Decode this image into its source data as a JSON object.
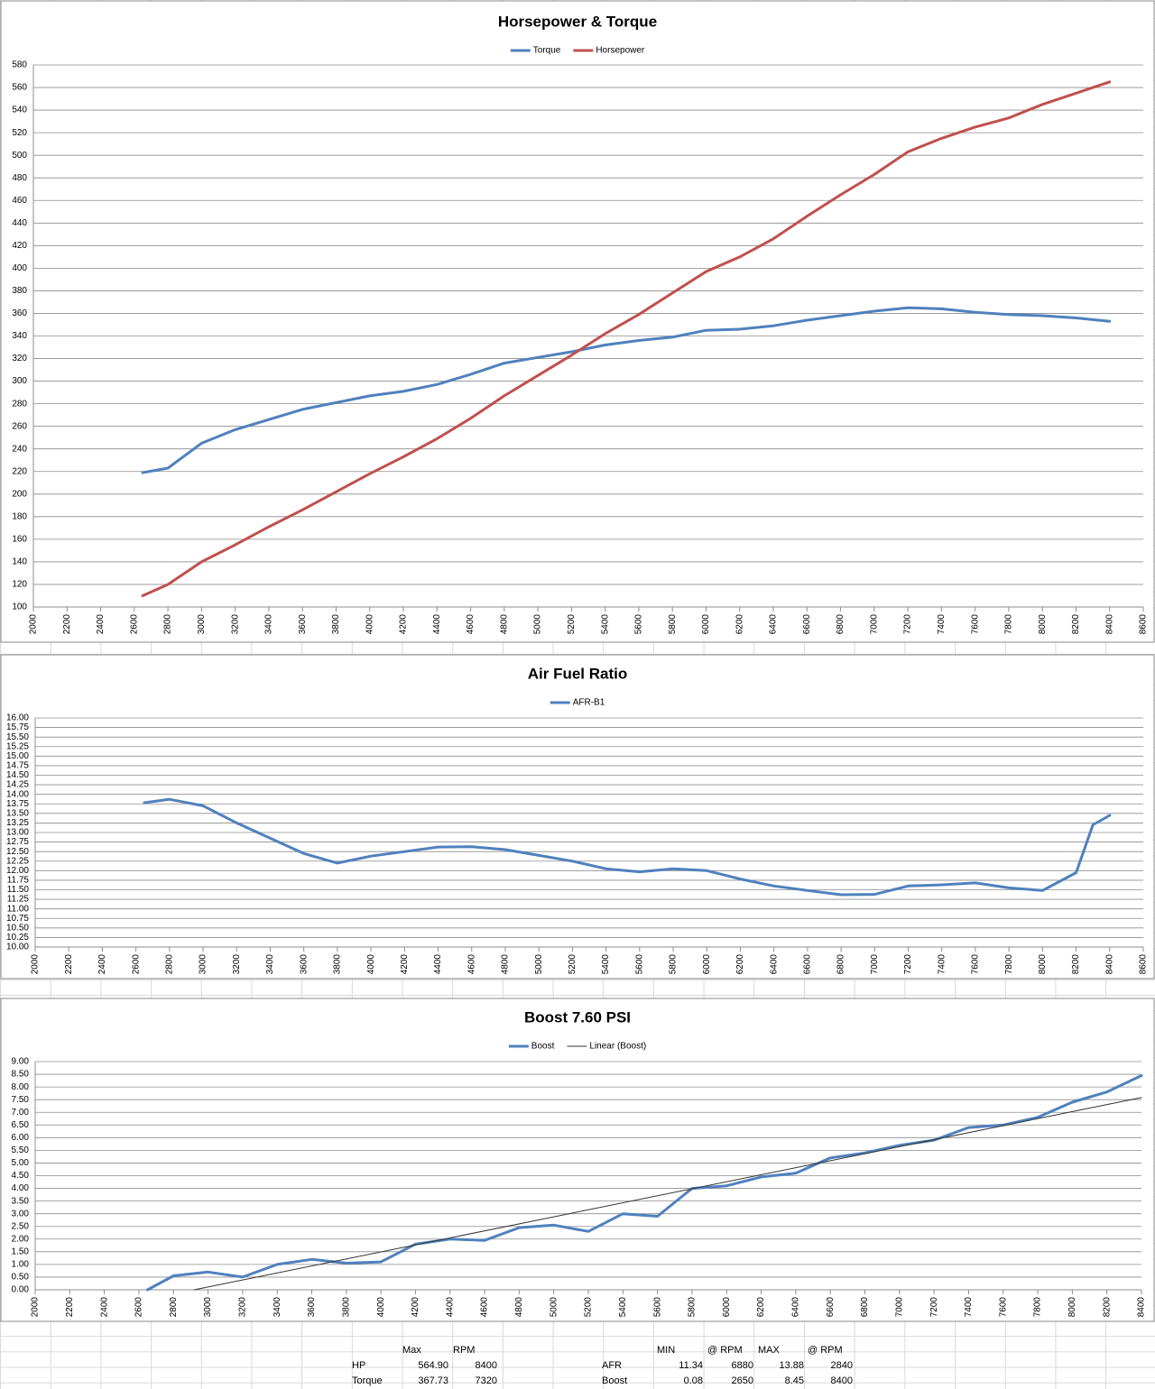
{
  "chart_data": [
    {
      "type": "line",
      "title": "Horsepower & Torque",
      "x": [
        2650,
        2800,
        3000,
        3200,
        3400,
        3600,
        3800,
        4000,
        4200,
        4400,
        4600,
        4800,
        5000,
        5200,
        5400,
        5600,
        5800,
        6000,
        6200,
        6400,
        6600,
        6800,
        7000,
        7200,
        7400,
        7600,
        7800,
        8000,
        8200,
        8400
      ],
      "series": [
        {
          "name": "Torque",
          "color": "#4f81bd",
          "values": [
            219,
            223,
            245,
            257,
            266,
            275,
            281,
            287,
            291,
            297,
            306,
            316,
            321,
            326,
            332,
            336,
            339,
            345,
            346,
            349,
            354,
            358,
            362,
            365,
            364,
            361,
            359,
            358,
            356,
            353
          ]
        },
        {
          "name": "Horsepower",
          "color": "#c0504d",
          "values": [
            110,
            120,
            140,
            155,
            171,
            186,
            202,
            218,
            233,
            249,
            267,
            287,
            305,
            323,
            342,
            359,
            378,
            397,
            410,
            426,
            446,
            465,
            483,
            503,
            515,
            525,
            533,
            545,
            555,
            565
          ]
        }
      ],
      "xlim": [
        2000,
        8600
      ],
      "xticks": [
        2000,
        2200,
        2400,
        2600,
        2800,
        3000,
        3200,
        3400,
        3600,
        3800,
        4000,
        4200,
        4400,
        4600,
        4800,
        5000,
        5200,
        5400,
        5600,
        5800,
        6000,
        6200,
        6400,
        6600,
        6800,
        7000,
        7200,
        7400,
        7600,
        7800,
        8000,
        8200,
        8400,
        8600
      ],
      "ylim": [
        100,
        580
      ],
      "yticks": [
        100,
        120,
        140,
        160,
        180,
        200,
        220,
        240,
        260,
        280,
        300,
        320,
        340,
        360,
        380,
        400,
        420,
        440,
        460,
        480,
        500,
        520,
        540,
        560,
        580
      ],
      "grid": true
    },
    {
      "type": "line",
      "title": "Air Fuel Ratio",
      "x": [
        2650,
        2800,
        3000,
        3200,
        3400,
        3600,
        3800,
        4000,
        4200,
        4400,
        4600,
        4800,
        5000,
        5200,
        5400,
        5600,
        5800,
        6000,
        6200,
        6400,
        6600,
        6800,
        7000,
        7200,
        7400,
        7600,
        7800,
        8000,
        8200,
        8300,
        8400
      ],
      "series": [
        {
          "name": "AFR-B1",
          "color": "#4f81bd",
          "values": [
            13.78,
            13.87,
            13.7,
            13.25,
            12.85,
            12.45,
            12.2,
            12.38,
            12.5,
            12.62,
            12.63,
            12.55,
            12.4,
            12.25,
            12.05,
            11.97,
            12.05,
            12.0,
            11.78,
            11.6,
            11.48,
            11.37,
            11.38,
            11.6,
            11.63,
            11.68,
            11.55,
            11.48,
            11.95,
            13.2,
            13.45
          ]
        }
      ],
      "xlim": [
        2000,
        8600
      ],
      "xticks": [
        2000,
        2200,
        2400,
        2600,
        2800,
        3000,
        3200,
        3400,
        3600,
        3800,
        4000,
        4200,
        4400,
        4600,
        4800,
        5000,
        5200,
        5400,
        5600,
        5800,
        6000,
        6200,
        6400,
        6600,
        6800,
        7000,
        7200,
        7400,
        7600,
        7800,
        8000,
        8200,
        8400,
        8600
      ],
      "ylim": [
        10,
        16
      ],
      "yticks": [
        {
          "value": 10,
          "label": "10.00"
        },
        {
          "value": 10.25,
          "label": "10.25"
        },
        {
          "value": 10.5,
          "label": "10.50"
        },
        {
          "value": 10.75,
          "label": "10.75"
        },
        {
          "value": 11,
          "label": "11.00"
        },
        {
          "value": 11.25,
          "label": "11.25"
        },
        {
          "value": 11.5,
          "label": "11.50"
        },
        {
          "value": 11.75,
          "label": "11.75"
        },
        {
          "value": 12,
          "label": "12.00"
        },
        {
          "value": 12.25,
          "label": "12.25"
        },
        {
          "value": 12.5,
          "label": "12.50"
        },
        {
          "value": 12.75,
          "label": "12.75"
        },
        {
          "value": 13,
          "label": "13.00"
        },
        {
          "value": 13.25,
          "label": "13.25"
        },
        {
          "value": 13.5,
          "label": "13.50"
        },
        {
          "value": 13.75,
          "label": "13.75"
        },
        {
          "value": 14,
          "label": "14.00"
        },
        {
          "value": 14.25,
          "label": "14.25"
        },
        {
          "value": 14.5,
          "label": "14.50"
        },
        {
          "value": 14.75,
          "label": "14.75"
        },
        {
          "value": 15,
          "label": "15.00"
        },
        {
          "value": 15.25,
          "label": "15.25"
        },
        {
          "value": 15.5,
          "label": "15.50"
        },
        {
          "value": 15.75,
          "label": "15.75"
        },
        {
          "value": 16,
          "label": "16.00"
        }
      ],
      "grid": true
    },
    {
      "type": "line",
      "title": "Boost 7.60 PSI",
      "x": [
        2650,
        2800,
        3000,
        3200,
        3400,
        3600,
        3800,
        4000,
        4200,
        4400,
        4600,
        4800,
        5000,
        5200,
        5400,
        5600,
        5800,
        6000,
        6200,
        6400,
        6600,
        6800,
        7000,
        7200,
        7400,
        7600,
        7800,
        8000,
        8200,
        8400
      ],
      "series": [
        {
          "name": "Boost",
          "color": "#4f81bd",
          "values": [
            0.0,
            0.55,
            0.7,
            0.5,
            1.0,
            1.2,
            1.05,
            1.1,
            1.8,
            2.0,
            1.95,
            2.45,
            2.55,
            2.3,
            3.0,
            2.9,
            4.0,
            4.1,
            4.45,
            4.6,
            5.2,
            5.4,
            5.7,
            5.9,
            6.4,
            6.5,
            6.8,
            7.4,
            7.8,
            8.45
          ]
        },
        {
          "name": "Linear (Boost)",
          "color": "#333333",
          "x": [
            2920,
            8400
          ],
          "values": [
            0,
            7.58
          ]
        }
      ],
      "xlim": [
        2000,
        8400
      ],
      "xticks": [
        2000,
        2200,
        2400,
        2600,
        2800,
        3000,
        3200,
        3400,
        3600,
        3800,
        4000,
        4200,
        4400,
        4600,
        4800,
        5000,
        5200,
        5400,
        5600,
        5800,
        6000,
        6200,
        6400,
        6600,
        6800,
        7000,
        7200,
        7400,
        7600,
        7800,
        8000,
        8200,
        8400
      ],
      "ylim": [
        0,
        9
      ],
      "yticks": [
        {
          "value": 0,
          "label": "0.00"
        },
        {
          "value": 0.5,
          "label": "0.50"
        },
        {
          "value": 1,
          "label": "1.00"
        },
        {
          "value": 1.5,
          "label": "1.50"
        },
        {
          "value": 2,
          "label": "2.00"
        },
        {
          "value": 2.5,
          "label": "2.50"
        },
        {
          "value": 3,
          "label": "3.00"
        },
        {
          "value": 3.5,
          "label": "3.50"
        },
        {
          "value": 4,
          "label": "4.00"
        },
        {
          "value": 4.5,
          "label": "4.50"
        },
        {
          "value": 5,
          "label": "5.00"
        },
        {
          "value": 5.5,
          "label": "5.50"
        },
        {
          "value": 6,
          "label": "6.00"
        },
        {
          "value": 6.5,
          "label": "6.50"
        },
        {
          "value": 7,
          "label": "7.00"
        },
        {
          "value": 7.5,
          "label": "7.50"
        },
        {
          "value": 8,
          "label": "8.00"
        },
        {
          "value": 8.5,
          "label": "8.50"
        },
        {
          "value": 9,
          "label": "9.00"
        }
      ],
      "grid": true
    }
  ],
  "summary": [
    {
      "columns": [
        "Max",
        "RPM"
      ],
      "rows": [
        {
          "label": "HP",
          "cells": [
            "564.90",
            "8400"
          ]
        },
        {
          "label": "Torque",
          "cells": [
            "367.73",
            "7320"
          ]
        }
      ]
    },
    {
      "columns": [
        "MIN",
        "@ RPM",
        "MAX",
        "@ RPM"
      ],
      "rows": [
        {
          "label": "AFR",
          "cells": [
            "11.34",
            "6880",
            "13.88",
            "2840"
          ]
        },
        {
          "label": "Boost",
          "cells": [
            "0.08",
            "2650",
            "8.45",
            "8400"
          ]
        }
      ]
    }
  ]
}
